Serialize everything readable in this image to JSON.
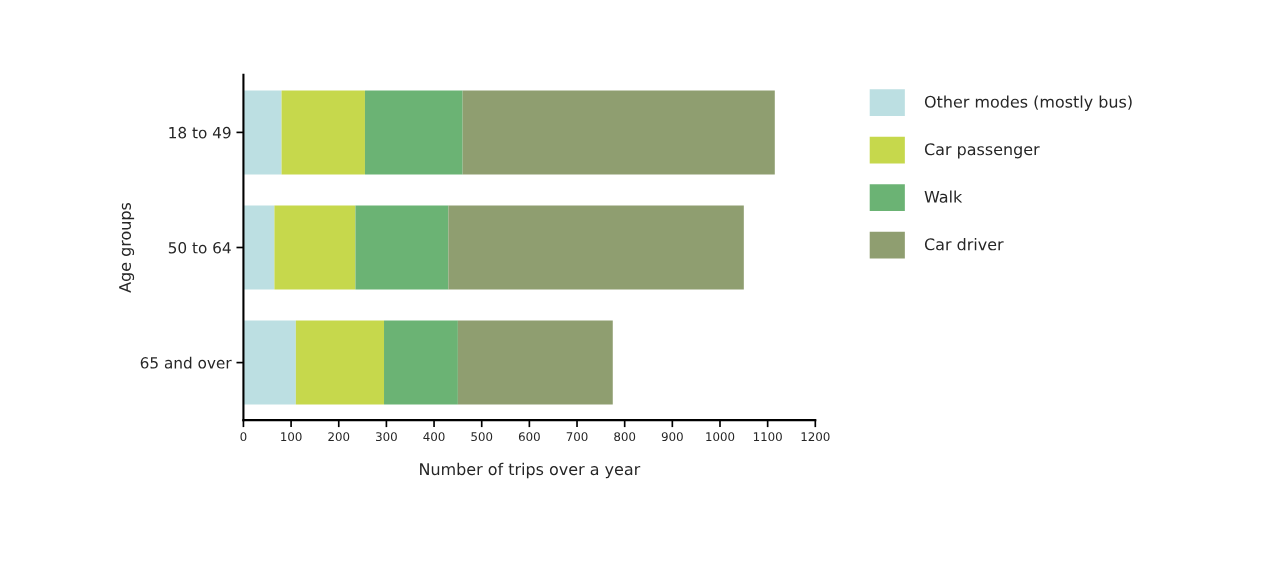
{
  "chart_data": {
    "type": "bar",
    "orientation": "horizontal",
    "stacked": true,
    "xlabel": "Number of trips over a year",
    "ylabel": "Age groups",
    "categories": [
      "18 to 49",
      "50 to 64",
      "65 and over"
    ],
    "series": [
      {
        "name": "Other modes (mostly bus)",
        "color": "#bcdfe2",
        "values": [
          80,
          65,
          110
        ]
      },
      {
        "name": "Car passenger",
        "color": "#c6d84c",
        "values": [
          175,
          170,
          185
        ]
      },
      {
        "name": "Walk",
        "color": "#6bb374",
        "values": [
          205,
          195,
          155
        ]
      },
      {
        "name": "Car driver",
        "color": "#8f9e70",
        "values": [
          655,
          620,
          325
        ]
      }
    ],
    "xlim": [
      0,
      1200
    ],
    "xticks": [
      0,
      100,
      200,
      300,
      400,
      500,
      600,
      700,
      800,
      900,
      1000,
      1100,
      1200
    ],
    "grid": false,
    "legend": "right"
  }
}
